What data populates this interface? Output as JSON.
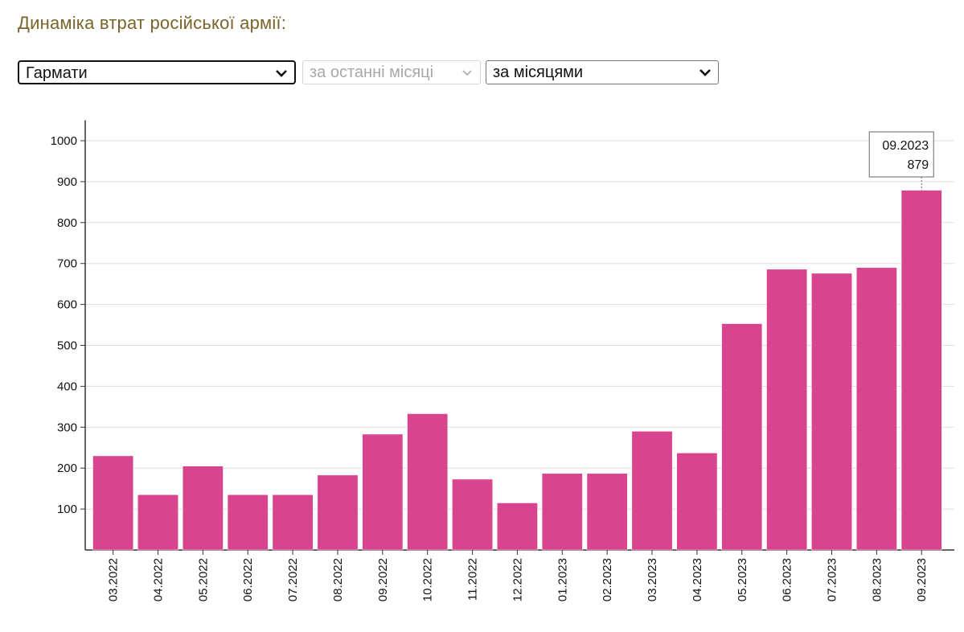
{
  "page": {
    "title": "Динаміка втрат російської армії:"
  },
  "controls": {
    "metric": "Гармати",
    "period": "за останні місяці",
    "grouping": "за місяцями"
  },
  "colors": {
    "bar": "#d9448e",
    "title": "#7a6429",
    "grid": "#dddddd"
  },
  "tooltip": {
    "label": "09.2023",
    "value": "879"
  },
  "chart_data": {
    "type": "bar",
    "categories": [
      "03.2022",
      "04.2022",
      "05.2022",
      "06.2022",
      "07.2022",
      "08.2022",
      "09.2022",
      "10.2022",
      "11.2022",
      "12.2022",
      "01.2023",
      "02.2023",
      "03.2023",
      "04.2023",
      "05.2023",
      "06.2023",
      "07.2023",
      "08.2023",
      "09.2023"
    ],
    "values": [
      230,
      135,
      205,
      135,
      135,
      183,
      283,
      333,
      173,
      115,
      187,
      187,
      290,
      237,
      553,
      686,
      676,
      690,
      879
    ],
    "ylim": [
      0,
      1050
    ],
    "yticks": [
      100,
      200,
      300,
      400,
      500,
      600,
      700,
      800,
      900,
      1000
    ],
    "grid": true,
    "xlabel": "",
    "ylabel": "",
    "title": ""
  }
}
